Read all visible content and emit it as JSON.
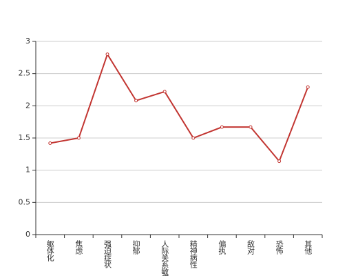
{
  "chart_data": {
    "type": "line",
    "categories": [
      "躯体化",
      "焦虑",
      "强迫症状",
      "抑郁",
      "人际关系敏感",
      "精神病性",
      "偏执",
      "敌对",
      "恐怖",
      "其他"
    ],
    "series": [
      {
        "color": "#c23531",
        "values": [
          1.42,
          1.5,
          2.8,
          2.08,
          2.22,
          1.5,
          1.67,
          1.67,
          1.14,
          2.29
        ]
      }
    ],
    "ylim": [
      0,
      3
    ],
    "yticks": [
      0,
      0.5,
      1,
      1.5,
      2,
      2.5,
      3
    ],
    "grid": true
  }
}
